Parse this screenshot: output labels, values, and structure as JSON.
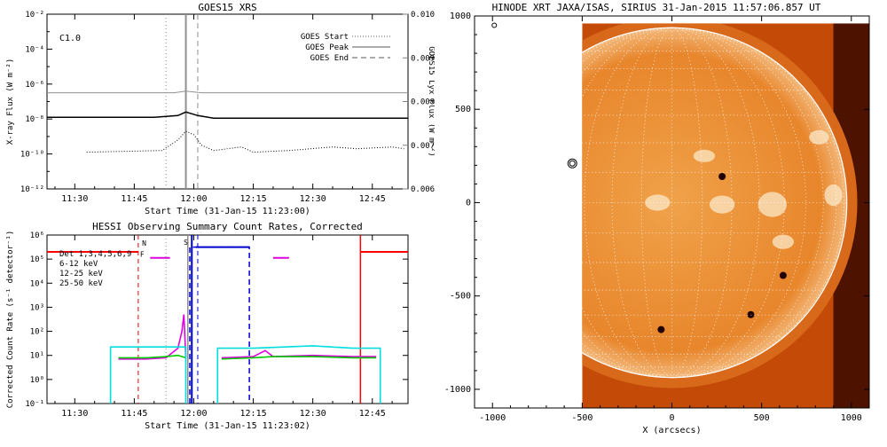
{
  "chart_data": [
    {
      "type": "line",
      "title": "GOES15 XRS",
      "xlabel": "Start Time (31-Jan-15 11:23:00)",
      "ylabel": "X-ray Flux (W m⁻²)",
      "y2label": "GOES15 Lyx Flux (W m⁻²)",
      "class_label": "C1.0",
      "xlim": [
        23,
        114
      ],
      "xticks": [
        "11:30",
        "11:45",
        "12:00",
        "12:15",
        "12:30",
        "12:45"
      ],
      "yscale": "log",
      "ylim": [
        -12,
        -2
      ],
      "yticks": [
        "10⁻¹²",
        "10⁻¹⁰",
        "10⁻⁸",
        "10⁻⁶",
        "10⁻⁴",
        "10⁻²"
      ],
      "y2lim": [
        0.006,
        0.01
      ],
      "y2ticks": [
        "0.006",
        "0.007",
        "0.008",
        "0.009",
        "0.010"
      ],
      "legend": [
        {
          "label": "GOES Start",
          "style": "dotted"
        },
        {
          "label": "GOES Peak",
          "style": "solid"
        },
        {
          "label": "GOES End",
          "style": "dashed"
        }
      ],
      "legend_position": "top-right",
      "markers": {
        "start": 53,
        "peak": 58,
        "end": 61
      },
      "series": [
        {
          "color": "#909090",
          "values": [
            [
              23,
              -6.5
            ],
            [
              40,
              -6.5
            ],
            [
              55,
              -6.5
            ],
            [
              58,
              -6.4
            ],
            [
              62,
              -6.5
            ],
            [
              80,
              -6.5
            ],
            [
              100,
              -6.5
            ],
            [
              114,
              -6.5
            ]
          ]
        },
        {
          "color": "#000000",
          "values": [
            [
              23,
              -7.9
            ],
            [
              50,
              -7.9
            ],
            [
              56,
              -7.8
            ],
            [
              58,
              -7.6
            ],
            [
              61,
              -7.8
            ],
            [
              65,
              -7.95
            ],
            [
              114,
              -7.95
            ]
          ]
        },
        {
          "color": "#000000",
          "style": "dotted",
          "values": [
            [
              33,
              -9.9
            ],
            [
              52,
              -9.8
            ],
            [
              56,
              -9.2
            ],
            [
              58,
              -8.7
            ],
            [
              60,
              -8.9
            ],
            [
              62,
              -9.5
            ],
            [
              65,
              -9.8
            ],
            [
              72,
              -9.6
            ],
            [
              75,
              -9.9
            ],
            [
              84,
              -9.8
            ],
            [
              95,
              -9.6
            ],
            [
              101,
              -9.7
            ],
            [
              110,
              -9.6
            ],
            [
              113,
              -9.7
            ]
          ]
        }
      ]
    },
    {
      "type": "line",
      "title": "HESSI Observing Summary Count Rates, Corrected",
      "xlabel": "Start Time (31-Jan-15 11:23:02)",
      "ylabel": "Corrected Count Rate (s⁻¹ detector⁻¹)",
      "xlim": [
        23,
        114
      ],
      "xticks": [
        "11:30",
        "11:45",
        "12:00",
        "12:15",
        "12:30",
        "12:45"
      ],
      "yscale": "log",
      "ylim": [
        -1,
        6
      ],
      "yticks": [
        "10⁻¹",
        "10⁰",
        "10¹",
        "10²",
        "10³",
        "10⁴",
        "10⁵",
        "10⁶"
      ],
      "legend": [
        {
          "label": "Det 1,3,4,5,6,9",
          "color": "#000000"
        },
        {
          "label": "6-12 keV",
          "color": "#dd00dd"
        },
        {
          "label": "12-25 keV",
          "color": "#00cc00"
        },
        {
          "label": "25-50 keV",
          "color": "#00dddd"
        }
      ],
      "legend_position": "top-left",
      "flag_labels": [
        "N",
        "F",
        "S"
      ],
      "series": [
        {
          "name": "6-12 keV",
          "color": "#dd00dd",
          "segments": [
            [
              [
                41,
                0.85
              ],
              [
                48,
                0.85
              ],
              [
                53,
                0.9
              ],
              [
                56,
                1.3
              ],
              [
                57,
                2.0
              ],
              [
                57.5,
                2.7
              ],
              [
                58,
                0.9
              ]
            ],
            [
              [
                67,
                0.9
              ],
              [
                75,
                0.95
              ],
              [
                78,
                1.2
              ],
              [
                80,
                0.95
              ],
              [
                90,
                1.0
              ],
              [
                100,
                0.95
              ],
              [
                106,
                0.95
              ]
            ]
          ]
        },
        {
          "name": "12-25 keV",
          "color": "#00cc00",
          "segments": [
            [
              [
                41,
                0.9
              ],
              [
                48,
                0.9
              ],
              [
                53,
                0.95
              ],
              [
                56,
                1.0
              ],
              [
                58,
                0.9
              ]
            ],
            [
              [
                67,
                0.85
              ],
              [
                75,
                0.9
              ],
              [
                80,
                0.95
              ],
              [
                90,
                0.95
              ],
              [
                100,
                0.9
              ],
              [
                106,
                0.9
              ]
            ]
          ]
        },
        {
          "name": "25-50 keV",
          "color": "#00dddd",
          "segments": [
            [
              [
                39,
                -1
              ],
              [
                39,
                1.35
              ],
              [
                58,
                1.35
              ],
              [
                58,
                -1
              ]
            ],
            [
              [
                66,
                -1
              ],
              [
                66,
                1.3
              ],
              [
                75,
                1.3
              ],
              [
                90,
                1.4
              ],
              [
                100,
                1.3
              ],
              [
                107,
                1.3
              ],
              [
                107,
                -1
              ]
            ]
          ]
        }
      ]
    },
    {
      "type": "heatmap",
      "title": "HINODE XRT JAXA/ISAS, SIRIUS 31-Jan-2015 11:57:06.857 UT",
      "xlabel": "X (arcsecs)",
      "ylabel": "",
      "xlim": [
        -1100,
        1100
      ],
      "ylim": [
        -1100,
        1000
      ],
      "xticks": [
        "-1000",
        "-500",
        "0",
        "500",
        "1000"
      ],
      "yticks": [
        "-1000",
        "-500",
        "0",
        "500",
        "1000"
      ],
      "image_extent": {
        "x": [
          -500,
          1100
        ],
        "y": [
          -1100,
          960
        ]
      },
      "solar_radius": 975,
      "grid_step_deg": 10,
      "colors": {
        "background": "#c44a08",
        "disk": "#e8862c",
        "bright": "#fbe8c8",
        "dark": "#3a0800"
      }
    }
  ]
}
